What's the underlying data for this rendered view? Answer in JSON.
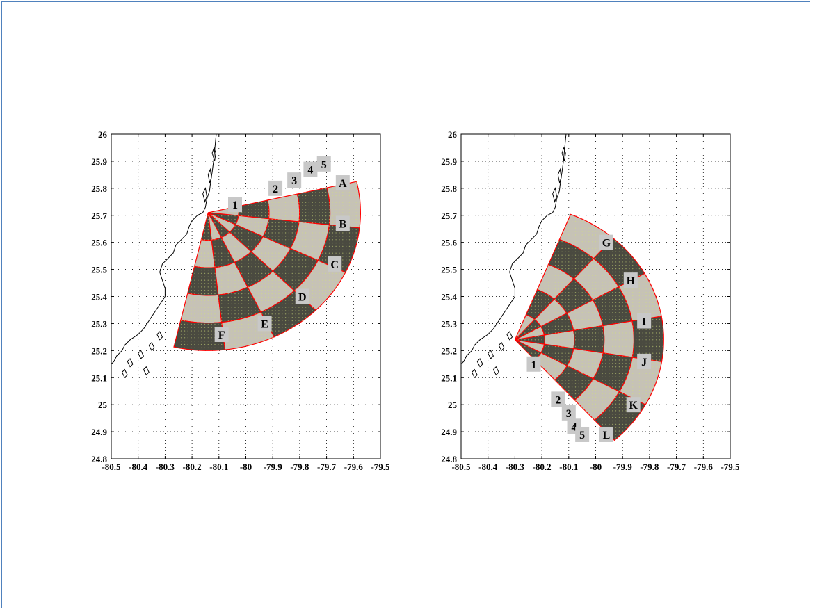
{
  "figure": {
    "colors": {
      "frame": "#4f81bd",
      "sector_lines": "#ff0000",
      "cell_dark": "#4a4a40",
      "cell_light": "#c6c2b6",
      "grid_dots": "#d2e07c",
      "label_box": "#c8c8c8",
      "coastline": "#000000"
    },
    "x_ticks": [
      -80.5,
      -80.4,
      -80.3,
      -80.2,
      -80.1,
      -80.0,
      -79.9,
      -79.8,
      -79.7,
      -79.6,
      -79.5
    ],
    "y_ticks": [
      24.8,
      24.9,
      25.0,
      25.1,
      25.2,
      25.3,
      25.4,
      25.5,
      25.6,
      25.7,
      25.8,
      25.9,
      26.0
    ],
    "x_tick_labels": [
      "-80.5",
      "-80.4",
      "-80.3",
      "-80.2",
      "-80.1",
      "-80",
      "-79.9",
      "-79.8",
      "-79.7",
      "-79.6",
      "-79.5"
    ],
    "y_tick_labels": [
      "24.8",
      "24.9",
      "25",
      "25.1",
      "25.2",
      "25.3",
      "25.4",
      "25.5",
      "25.6",
      "25.7",
      "25.8",
      "25.9",
      "26"
    ],
    "xlim": [
      -80.5,
      -79.5
    ],
    "ylim": [
      24.8,
      26.0
    ],
    "grid": "dotted"
  },
  "maps": [
    {
      "name": "left-map",
      "origin": {
        "lon": -80.14,
        "lat": 25.71
      },
      "sector_start_deg": -103,
      "sector_end_deg": 13,
      "radial_count": 6,
      "ring_count": 5,
      "max_radius_deg": 0.51,
      "radial_labels": [
        "A",
        "B",
        "C",
        "D",
        "E",
        "F"
      ],
      "ring_labels": [
        "1",
        "2",
        "3",
        "4",
        "5"
      ],
      "radial_label_positions": [
        {
          "label": "A",
          "lon": -79.64,
          "lat": 25.82
        },
        {
          "label": "B",
          "lon": -79.64,
          "lat": 25.67
        },
        {
          "label": "C",
          "lon": -79.67,
          "lat": 25.52
        },
        {
          "label": "D",
          "lon": -79.79,
          "lat": 25.4
        },
        {
          "label": "E",
          "lon": -79.93,
          "lat": 25.3
        },
        {
          "label": "F",
          "lon": -80.09,
          "lat": 25.26
        }
      ],
      "ring_label_positions": [
        {
          "label": "1",
          "lon": -80.04,
          "lat": 25.74
        },
        {
          "label": "2",
          "lon": -79.89,
          "lat": 25.8
        },
        {
          "label": "3",
          "lon": -79.82,
          "lat": 25.83
        },
        {
          "label": "4",
          "lon": -79.76,
          "lat": 25.87
        },
        {
          "label": "5",
          "lon": -79.71,
          "lat": 25.89
        }
      ]
    },
    {
      "name": "right-map",
      "origin": {
        "lon": -80.3,
        "lat": 25.24
      },
      "sector_start_deg": -48,
      "sector_end_deg": 68,
      "radial_count": 6,
      "ring_count": 5,
      "max_radius_deg": 0.5,
      "radial_labels": [
        "G",
        "H",
        "I",
        "J",
        "K",
        "L"
      ],
      "ring_labels": [
        "1",
        "2",
        "3",
        "4",
        "5"
      ],
      "radial_label_positions": [
        {
          "label": "G",
          "lon": -79.96,
          "lat": 25.6
        },
        {
          "label": "H",
          "lon": -79.87,
          "lat": 25.46
        },
        {
          "label": "I",
          "lon": -79.82,
          "lat": 25.31
        },
        {
          "label": "J",
          "lon": -79.82,
          "lat": 25.16
        },
        {
          "label": "K",
          "lon": -79.86,
          "lat": 25.0
        },
        {
          "label": "L",
          "lon": -79.96,
          "lat": 24.89
        }
      ],
      "ring_label_positions": [
        {
          "label": "1",
          "lon": -80.23,
          "lat": 25.15
        },
        {
          "label": "2",
          "lon": -80.14,
          "lat": 25.02
        },
        {
          "label": "3",
          "lon": -80.1,
          "lat": 24.97
        },
        {
          "label": "4",
          "lon": -80.08,
          "lat": 24.92
        },
        {
          "label": "5",
          "lon": -80.05,
          "lat": 24.89
        }
      ]
    }
  ],
  "coastline": [
    [
      -80.11,
      26.0
    ],
    [
      -80.115,
      25.95
    ],
    [
      -80.12,
      25.9
    ],
    [
      -80.125,
      25.86
    ],
    [
      -80.13,
      25.83
    ],
    [
      -80.135,
      25.79
    ],
    [
      -80.145,
      25.76
    ],
    [
      -80.15,
      25.73
    ],
    [
      -80.16,
      25.71
    ],
    [
      -80.18,
      25.7
    ],
    [
      -80.2,
      25.68
    ],
    [
      -80.21,
      25.66
    ],
    [
      -80.22,
      25.63
    ],
    [
      -80.24,
      25.61
    ],
    [
      -80.26,
      25.59
    ],
    [
      -80.27,
      25.56
    ],
    [
      -80.29,
      25.54
    ],
    [
      -80.31,
      25.52
    ],
    [
      -80.32,
      25.49
    ],
    [
      -80.31,
      25.46
    ],
    [
      -80.3,
      25.43
    ],
    [
      -80.3,
      25.4
    ],
    [
      -80.32,
      25.37
    ],
    [
      -80.34,
      25.34
    ],
    [
      -80.36,
      25.31
    ],
    [
      -80.38,
      25.28
    ],
    [
      -80.4,
      25.26
    ],
    [
      -80.43,
      25.24
    ],
    [
      -80.45,
      25.22
    ],
    [
      -80.46,
      25.2
    ],
    [
      -80.48,
      25.18
    ],
    [
      -80.49,
      25.16
    ],
    [
      -80.5,
      25.15
    ]
  ],
  "islands": [
    [
      [
        -80.125,
        25.93
      ],
      [
        -80.118,
        25.95
      ],
      [
        -80.112,
        25.93
      ],
      [
        -80.116,
        25.9
      ],
      [
        -80.125,
        25.93
      ]
    ],
    [
      [
        -80.14,
        25.85
      ],
      [
        -80.132,
        25.87
      ],
      [
        -80.128,
        25.84
      ],
      [
        -80.134,
        25.82
      ],
      [
        -80.14,
        25.85
      ]
    ],
    [
      [
        -80.16,
        25.78
      ],
      [
        -80.15,
        25.8
      ],
      [
        -80.145,
        25.77
      ],
      [
        -80.152,
        25.75
      ],
      [
        -80.16,
        25.78
      ]
    ],
    [
      [
        -80.33,
        25.26
      ],
      [
        -80.32,
        25.27
      ],
      [
        -80.31,
        25.25
      ],
      [
        -80.32,
        25.24
      ],
      [
        -80.33,
        25.26
      ]
    ],
    [
      [
        -80.36,
        25.22
      ],
      [
        -80.35,
        25.23
      ],
      [
        -80.34,
        25.21
      ],
      [
        -80.35,
        25.2
      ],
      [
        -80.36,
        25.22
      ]
    ],
    [
      [
        -80.4,
        25.19
      ],
      [
        -80.39,
        25.2
      ],
      [
        -80.38,
        25.18
      ],
      [
        -80.39,
        25.17
      ],
      [
        -80.4,
        25.19
      ]
    ],
    [
      [
        -80.44,
        25.16
      ],
      [
        -80.43,
        25.17
      ],
      [
        -80.42,
        25.15
      ],
      [
        -80.43,
        25.14
      ],
      [
        -80.44,
        25.16
      ]
    ],
    [
      [
        -80.38,
        25.13
      ],
      [
        -80.37,
        25.14
      ],
      [
        -80.36,
        25.12
      ],
      [
        -80.37,
        25.11
      ],
      [
        -80.38,
        25.13
      ]
    ],
    [
      [
        -80.46,
        25.12
      ],
      [
        -80.45,
        25.13
      ],
      [
        -80.44,
        25.11
      ],
      [
        -80.45,
        25.1
      ],
      [
        -80.46,
        25.12
      ]
    ]
  ]
}
